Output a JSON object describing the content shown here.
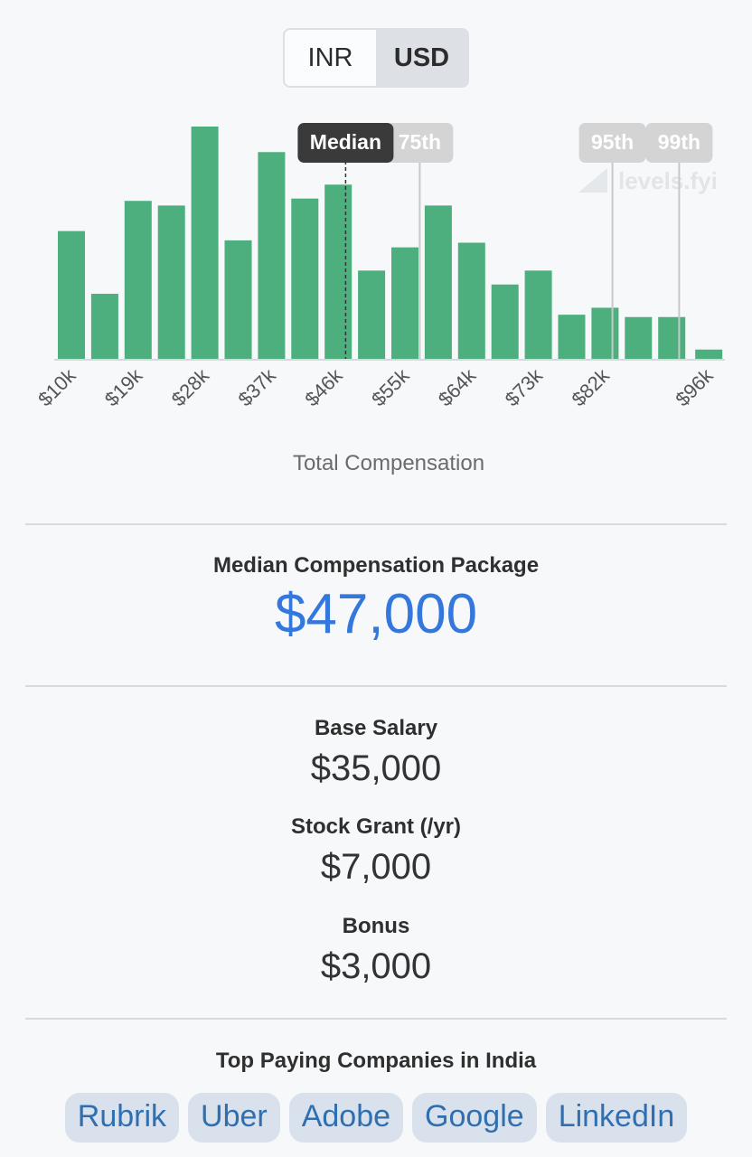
{
  "currency_toggle": {
    "options": [
      "INR",
      "USD"
    ],
    "selected": "USD"
  },
  "chart_data": {
    "type": "bar",
    "xlabel": "Total Compensation",
    "tick_labels": [
      "$10k",
      "$19k",
      "$28k",
      "$37k",
      "$46k",
      "$55k",
      "$64k",
      "$73k",
      "$82k",
      "$96k"
    ],
    "tick_values": [
      10,
      19,
      28,
      37,
      46,
      55,
      64,
      73,
      82,
      96
    ],
    "bin_centers_k": [
      10,
      14.5,
      19,
      23.5,
      28,
      32.5,
      37,
      41.5,
      46,
      50.5,
      55,
      59.5,
      64,
      68.5,
      73,
      77.5,
      82,
      86.5,
      91,
      96
    ],
    "values": [
      0.55,
      0.28,
      0.68,
      0.66,
      1.0,
      0.51,
      0.89,
      0.69,
      0.75,
      0.38,
      0.48,
      0.66,
      0.5,
      0.32,
      0.38,
      0.19,
      0.22,
      0.18,
      0.18,
      0.04
    ],
    "percentile_markers": [
      {
        "label": "Median",
        "value_k": 47,
        "style": "dark"
      },
      {
        "label": "75th",
        "value_k": 57,
        "style": "light"
      },
      {
        "label": "95th",
        "value_k": 83,
        "style": "light"
      },
      {
        "label": "99th",
        "value_k": 92,
        "style": "light"
      }
    ],
    "bar_color": "#4caf7d",
    "watermark": "levels.fyi"
  },
  "median_package": {
    "label": "Median Compensation Package",
    "value": "$47,000"
  },
  "breakdown": [
    {
      "label": "Base Salary",
      "value": "$35,000"
    },
    {
      "label": "Stock Grant (/yr)",
      "value": "$7,000"
    },
    {
      "label": "Bonus",
      "value": "$3,000"
    }
  ],
  "top_companies": {
    "title": "Top Paying Companies in India",
    "items": [
      "Rubrik",
      "Uber",
      "Adobe",
      "Google",
      "LinkedIn"
    ]
  }
}
